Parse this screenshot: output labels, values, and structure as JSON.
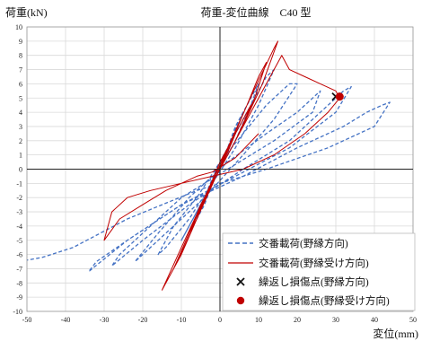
{
  "chart_data": {
    "type": "line",
    "title": "荷重-変位曲線　C40 型",
    "ylabel": "荷重(kN)",
    "xlabel": "変位(mm)",
    "xlim": [
      -50,
      50
    ],
    "ylim": [
      -10,
      10
    ],
    "xticks": [
      -50,
      -40,
      -30,
      -20,
      -10,
      0,
      10,
      20,
      30,
      40,
      50
    ],
    "yticks": [
      -10,
      -9,
      -8,
      -7,
      -6,
      -5,
      -4,
      -3,
      -2,
      -1,
      0,
      1,
      2,
      3,
      4,
      5,
      6,
      7,
      8,
      9,
      10
    ],
    "grid": true,
    "legend_position": "bottom-right",
    "colors": {
      "blue": "#4472c4",
      "red": "#c00000",
      "cross": "#111111"
    },
    "series": [
      {
        "name": "交番載荷(野縁方向)",
        "style": "dashed",
        "color": "#4472c4",
        "x": [
          0,
          2,
          4,
          6,
          4,
          0,
          -2,
          -4,
          -6,
          -4,
          -1,
          2,
          5,
          8,
          10,
          8,
          4,
          0,
          -4,
          -8,
          -10,
          -6,
          -2,
          2,
          6,
          10,
          12,
          14,
          10,
          4,
          -2,
          -8,
          -14,
          -16,
          -12,
          -6,
          0,
          6,
          12,
          16,
          18,
          20,
          14,
          6,
          -4,
          -14,
          -20,
          -22,
          -16,
          -8,
          2,
          12,
          20,
          24,
          26,
          24,
          14,
          2,
          -10,
          -20,
          -26,
          -28,
          -20,
          -8,
          6,
          18,
          26,
          30,
          32,
          34,
          30,
          18,
          4,
          -10,
          -24,
          -32,
          -34,
          -24,
          -10,
          6,
          20,
          32,
          38,
          42,
          44,
          40,
          28,
          12,
          -6,
          -24,
          -38,
          -46,
          -50
        ],
        "y": [
          0,
          1.5,
          3,
          4,
          2.5,
          0,
          -1,
          -2.5,
          -3.5,
          -2,
          0,
          1.5,
          3.5,
          5,
          6,
          4.5,
          2,
          0,
          -2,
          -4,
          -5,
          -3,
          -1,
          1.5,
          3.5,
          5.5,
          6.5,
          7,
          4.5,
          1.5,
          -1,
          -3.5,
          -5.5,
          -6,
          -4,
          -2,
          0.5,
          2.5,
          4.5,
          5.5,
          6,
          6,
          3.5,
          1,
          -2,
          -4.5,
          -6,
          -6.5,
          -4.5,
          -2,
          0.5,
          2.5,
          4,
          5,
          5.5,
          4,
          2,
          0,
          -2,
          -4.5,
          -6,
          -6.8,
          -5,
          -2.5,
          0,
          2,
          4,
          5,
          5.5,
          5.8,
          4,
          1.5,
          -0.5,
          -2.5,
          -5,
          -6.5,
          -7.2,
          -5,
          -2.5,
          -0.5,
          1.5,
          3,
          4,
          4.5,
          4.7,
          3,
          1.5,
          0,
          -1.5,
          -3.5,
          -5.5,
          -6.2,
          -6.4
        ]
      },
      {
        "name": "交番載荷(野縁受け方向)",
        "style": "solid",
        "color": "#c00000",
        "x": [
          0,
          2,
          4,
          2,
          0,
          -2,
          -4,
          -2,
          0,
          3,
          6,
          8,
          5,
          1,
          -3,
          -6,
          -8,
          -5,
          -1,
          3,
          7,
          10,
          12,
          9,
          4,
          -2,
          -6,
          -10,
          -12,
          -8,
          -3,
          2,
          7,
          11,
          14,
          15,
          11,
          5,
          -1,
          -6,
          -11,
          -14,
          -15,
          -10,
          -4,
          2,
          8,
          13,
          16,
          18,
          22,
          26,
          30,
          31,
          28,
          22,
          14,
          6,
          -2,
          -10,
          -18,
          -24,
          -28,
          -30,
          -26,
          -20,
          -14,
          -10,
          -6,
          -2,
          4,
          10
        ],
        "y": [
          0,
          1.5,
          2.5,
          1.2,
          0,
          -1,
          -2,
          -0.8,
          0.5,
          2,
          3.5,
          4.5,
          2.5,
          0.5,
          -1.5,
          -3.5,
          -4.5,
          -2.5,
          -0.5,
          2,
          4.5,
          6.5,
          7.5,
          5,
          2,
          -1,
          -3.5,
          -6,
          -7,
          -4.5,
          -1.5,
          1.5,
          4.5,
          6.8,
          8.5,
          9,
          6,
          2.5,
          -0.5,
          -3.5,
          -6.5,
          -8,
          -8.5,
          -5.5,
          -2,
          1,
          4,
          6.5,
          8,
          7,
          6.5,
          6,
          5.5,
          5,
          4,
          2.5,
          1,
          0,
          -0.5,
          -1,
          -1.5,
          -2,
          -3,
          -5,
          -3.5,
          -2.5,
          -1.5,
          -1,
          -0.5,
          -0.2,
          0.8,
          2.5
        ]
      }
    ],
    "markers": [
      {
        "name": "繰返し損傷点(野縁方向)",
        "symbol": "cross",
        "color": "#111111",
        "x": 30,
        "y": 5.1
      },
      {
        "name": "繰返し損傷点(野縁受け方向)",
        "symbol": "circle",
        "color": "#c00000",
        "x": 31,
        "y": 5.1
      }
    ]
  }
}
